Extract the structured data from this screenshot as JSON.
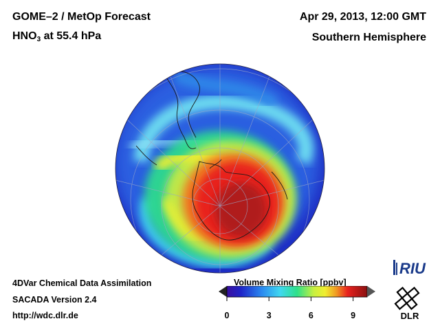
{
  "header": {
    "title_line1": "GOME–2 / MetOp Forecast",
    "title_species": "HNO",
    "title_species_sub": "3",
    "title_level": " at 55.4 hPa",
    "date": "Apr 29, 2013, 12:00 GMT",
    "region": "Southern Hemisphere"
  },
  "footer": {
    "line1": "4DVar Chemical Data Assimilation",
    "line2": "SACADA Version 2.4",
    "line3": "http://wdc.dlr.de"
  },
  "colorbar": {
    "label": "Volume Mixing Ratio [ppbv]",
    "min": 0,
    "max": 10,
    "ticks": [
      "0",
      "3",
      "6",
      "9"
    ],
    "tick_values": [
      0,
      3,
      6,
      9
    ]
  },
  "logos": {
    "riu": "RIU",
    "dlr": "DLR"
  },
  "colors": {
    "low": "#1e24c8",
    "mid_low": "#25b4ee",
    "mid": "#2ee08a",
    "mid_high": "#f0ee30",
    "high": "#e8221e",
    "max": "#a01818",
    "background": "#ffffff"
  }
}
